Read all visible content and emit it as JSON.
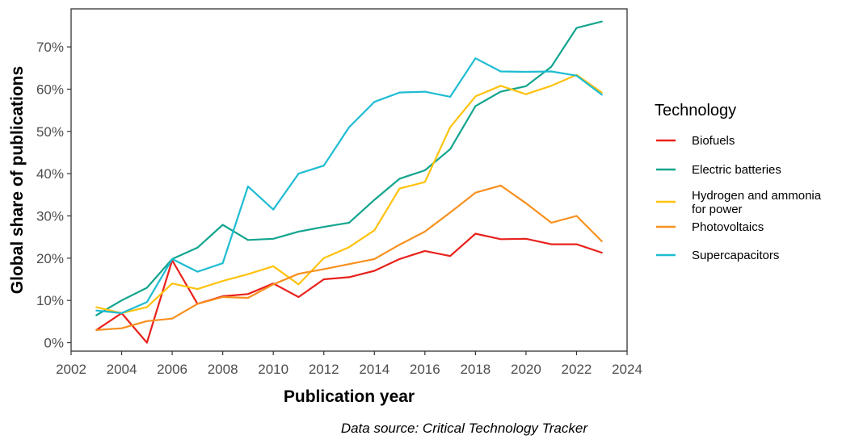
{
  "chart_data": {
    "type": "line",
    "xlabel": "Publication year",
    "ylabel": "Global share of publications",
    "xlim": [
      2002,
      2024
    ],
    "ylim": [
      -2,
      79
    ],
    "x_ticks": [
      2002,
      2004,
      2006,
      2008,
      2010,
      2012,
      2014,
      2016,
      2018,
      2020,
      2022,
      2024
    ],
    "y_ticks": [
      0,
      10,
      20,
      30,
      40,
      50,
      60,
      70
    ],
    "y_tick_labels": [
      "0%",
      "10%",
      "20%",
      "30%",
      "40%",
      "50%",
      "60%",
      "70%"
    ],
    "legend_title": "Technology",
    "legend_position": "right",
    "caption": "Data source: Critical Technology Tracker",
    "x": [
      2003,
      2004,
      2005,
      2006,
      2007,
      2008,
      2009,
      2010,
      2011,
      2012,
      2013,
      2014,
      2015,
      2016,
      2017,
      2018,
      2019,
      2020,
      2021,
      2022,
      2023
    ],
    "series": [
      {
        "name": "Biofuels",
        "color": "#e8221c",
        "values": [
          3.0,
          7.0,
          0.0,
          19.5,
          9.2,
          11.0,
          11.5,
          14.0,
          10.8,
          15.0,
          15.5,
          17.0,
          19.8,
          21.7,
          20.5,
          25.8,
          24.5,
          24.6,
          23.3,
          23.3,
          21.3
        ]
      },
      {
        "name": "Electric batteries",
        "color": "#12a58e",
        "values": [
          6.5,
          10.0,
          13.0,
          19.8,
          22.5,
          27.9,
          24.3,
          24.6,
          26.3,
          27.4,
          28.4,
          33.8,
          38.8,
          40.8,
          45.8,
          56.0,
          59.4,
          60.7,
          65.3,
          74.5,
          76.0
        ]
      },
      {
        "name": "Hydrogen and ammonia for power",
        "name_lines": [
          "Hydrogen and ammonia",
          "for power"
        ],
        "color": "#ffc20e",
        "values": [
          8.4,
          7.0,
          8.4,
          14.0,
          12.7,
          14.6,
          16.2,
          18.1,
          13.8,
          20.0,
          22.6,
          26.6,
          36.5,
          38.0,
          51.0,
          58.3,
          60.8,
          58.8,
          60.8,
          63.4,
          59.2
        ]
      },
      {
        "name": "Photovoltaics",
        "color": "#f7901e",
        "values": [
          3.0,
          3.4,
          5.1,
          5.7,
          9.2,
          10.8,
          10.6,
          13.8,
          16.3,
          17.4,
          18.6,
          19.8,
          23.2,
          26.3,
          30.8,
          35.5,
          37.2,
          33.0,
          28.4,
          30.0,
          24.0
        ]
      },
      {
        "name": "Supercapacitors",
        "color": "#1fbcd2",
        "values": [
          7.6,
          7.0,
          9.6,
          19.8,
          16.8,
          18.8,
          37.0,
          31.5,
          40.0,
          41.9,
          51.0,
          57.0,
          59.2,
          59.4,
          58.2,
          67.3,
          64.2,
          64.1,
          64.2,
          63.2,
          58.7
        ]
      }
    ]
  }
}
